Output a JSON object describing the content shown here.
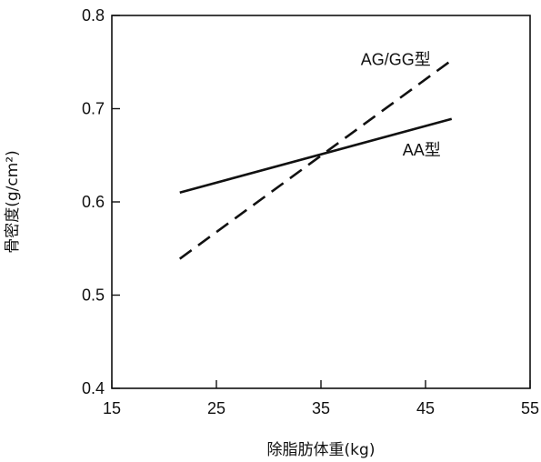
{
  "chart_data": {
    "type": "line",
    "xlabel": "除脂肪体重(kg)",
    "ylabel": "骨密度(g/cm²)",
    "xlim": [
      15,
      55
    ],
    "ylim": [
      0.4,
      0.8
    ],
    "xticks": [
      15,
      25,
      35,
      45,
      55
    ],
    "yticks": [
      0.4,
      0.5,
      0.6,
      0.7,
      0.8
    ],
    "xtick_labels": [
      "15",
      "25",
      "35",
      "45",
      "55"
    ],
    "ytick_labels": [
      "0.4",
      "0.5",
      "0.6",
      "0.7",
      "0.8"
    ],
    "grid": false,
    "series": [
      {
        "name": "AG/GG型",
        "style": "dashed",
        "color": "#111111",
        "x": [
          21.5,
          47.5
        ],
        "y": [
          0.539,
          0.752
        ],
        "label_at": [
          38.8,
          0.747
        ]
      },
      {
        "name": "AA型",
        "style": "solid",
        "color": "#111111",
        "x": [
          21.5,
          47.5
        ],
        "y": [
          0.61,
          0.689
        ],
        "label_at": [
          42.8,
          0.65
        ]
      }
    ]
  }
}
